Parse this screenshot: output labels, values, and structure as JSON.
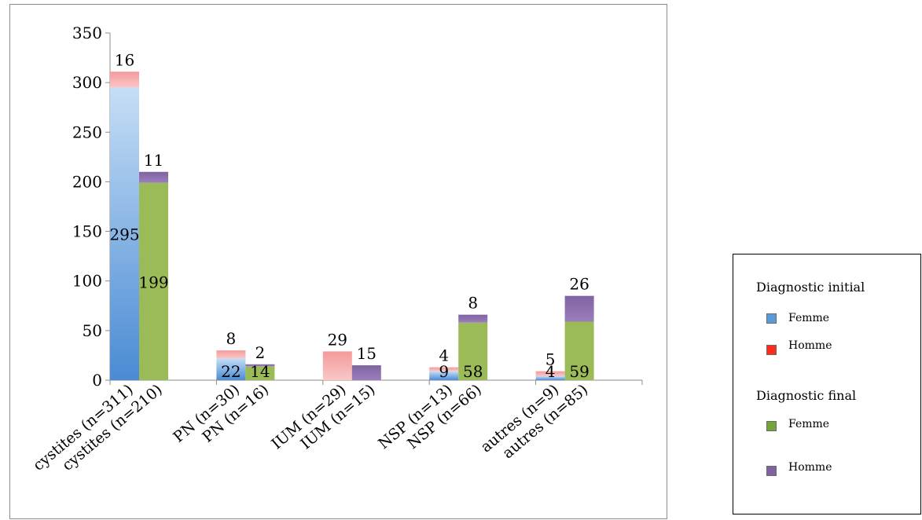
{
  "chart_data": {
    "type": "bar",
    "stacked": true,
    "ylim": [
      0,
      350
    ],
    "yticks": [
      0,
      50,
      100,
      150,
      200,
      250,
      300,
      350
    ],
    "grid": false,
    "legend_position": "right",
    "categories": [
      "cystites (n=311)",
      "cystites (n=210)",
      "PN (n=30)",
      "PN (n=16)",
      "IUM (n=29)",
      "IUM (n=15)",
      "NSP (n=13)",
      "NSP (n=66)",
      "autres (n=9)",
      "autres (n=85)"
    ],
    "series": [
      {
        "group": "Diagnostic initial",
        "name": "Femme",
        "color": "#5b9bd5",
        "values": [
          295,
          null,
          22,
          null,
          0,
          null,
          9,
          null,
          4,
          null
        ]
      },
      {
        "group": "Diagnostic initial",
        "name": "Homme",
        "color": "#e46c6c",
        "values": [
          16,
          null,
          8,
          null,
          29,
          null,
          4,
          null,
          5,
          null
        ]
      },
      {
        "group": "Diagnostic final",
        "name": "Femme",
        "color": "#9bbb59",
        "values": [
          null,
          199,
          null,
          14,
          null,
          0,
          null,
          58,
          null,
          59
        ]
      },
      {
        "group": "Diagnostic final",
        "name": "Homme",
        "color": "#8064a2",
        "values": [
          null,
          11,
          null,
          2,
          null,
          15,
          null,
          8,
          null,
          26
        ]
      }
    ]
  },
  "legend": {
    "initial_heading": "Diagnostic initial",
    "initial_femme": "Femme",
    "initial_homme": "Homme",
    "final_heading": "Diagnostic final",
    "final_femme": "Femme",
    "final_homme": "Homme"
  },
  "colors": {
    "initial_femme": "#5b9bd5",
    "initial_homme": "#ff2a1a",
    "final_femme": "#77a33c",
    "final_homme": "#8064a2"
  }
}
